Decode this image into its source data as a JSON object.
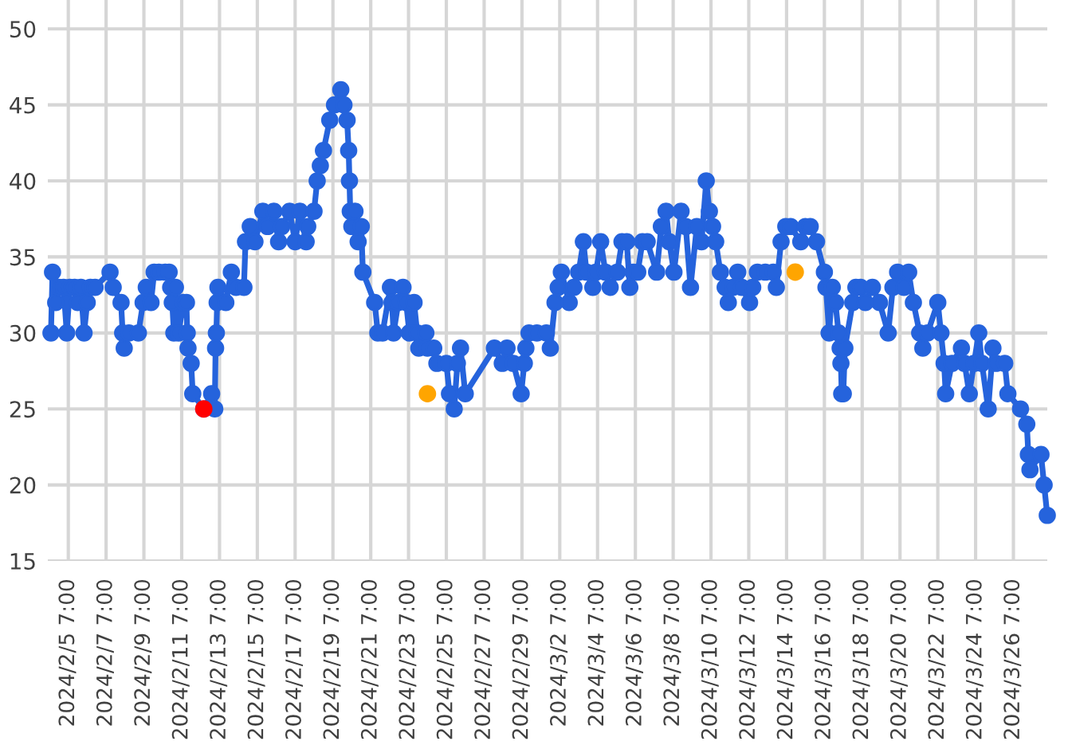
{
  "chart_data": {
    "type": "line",
    "marker": "circle",
    "grid": true,
    "xlim": [
      "2024-02-04T05:00",
      "2024-03-28T02:00"
    ],
    "xticks": [
      {
        "value": "2024-02-05T07:00",
        "label": "2024/2/5 7:00"
      },
      {
        "value": "2024-02-07T07:00",
        "label": "2024/2/7 7:00"
      },
      {
        "value": "2024-02-09T07:00",
        "label": "2024/2/9 7:00"
      },
      {
        "value": "2024-02-11T07:00",
        "label": "2024/2/11 7:00"
      },
      {
        "value": "2024-02-13T07:00",
        "label": "2024/2/13 7:00"
      },
      {
        "value": "2024-02-15T07:00",
        "label": "2024/2/15 7:00"
      },
      {
        "value": "2024-02-17T07:00",
        "label": "2024/2/17 7:00"
      },
      {
        "value": "2024-02-19T07:00",
        "label": "2024/2/19 7:00"
      },
      {
        "value": "2024-02-21T07:00",
        "label": "2024/2/21 7:00"
      },
      {
        "value": "2024-02-23T07:00",
        "label": "2024/2/23 7:00"
      },
      {
        "value": "2024-02-25T07:00",
        "label": "2024/2/25 7:00"
      },
      {
        "value": "2024-02-27T07:00",
        "label": "2024/2/27 7:00"
      },
      {
        "value": "2024-02-29T07:00",
        "label": "2024/2/29 7:00"
      },
      {
        "value": "2024-03-02T07:00",
        "label": "2024/3/2 7:00"
      },
      {
        "value": "2024-03-04T07:00",
        "label": "2024/3/4 7:00"
      },
      {
        "value": "2024-03-06T07:00",
        "label": "2024/3/6 7:00"
      },
      {
        "value": "2024-03-08T07:00",
        "label": "2024/3/8 7:00"
      },
      {
        "value": "2024-03-10T07:00",
        "label": "2024/3/10 7:00"
      },
      {
        "value": "2024-03-12T07:00",
        "label": "2024/3/12 7:00"
      },
      {
        "value": "2024-03-14T07:00",
        "label": "2024/3/14 7:00"
      },
      {
        "value": "2024-03-16T07:00",
        "label": "2024/3/16 7:00"
      },
      {
        "value": "2024-03-18T07:00",
        "label": "2024/3/18 7:00"
      },
      {
        "value": "2024-03-20T07:00",
        "label": "2024/3/20 7:00"
      },
      {
        "value": "2024-03-22T07:00",
        "label": "2024/3/22 7:00"
      },
      {
        "value": "2024-03-24T07:00",
        "label": "2024/3/24 7:00"
      },
      {
        "value": "2024-03-26T07:00",
        "label": "2024/3/26 7:00"
      }
    ],
    "ylim": [
      15,
      51.9
    ],
    "yticks": [
      15,
      20,
      25,
      30,
      35,
      40,
      45,
      50
    ],
    "series": [
      {
        "color": "#2563dc",
        "x": [
          "2024-02-04T09:00",
          "2024-02-04T11:00",
          "2024-02-04T15:00",
          "2024-02-04T19:00",
          "2024-02-05T01:00",
          "2024-02-05T05:00",
          "2024-02-05T09:00",
          "2024-02-05T15:00",
          "2024-02-05T19:00",
          "2024-02-05T23:00",
          "2024-02-06T03:00",
          "2024-02-06T07:00",
          "2024-02-06T11:00",
          "2024-02-06T17:00",
          "2024-02-07T12:00",
          "2024-02-07T16:00",
          "2024-02-08T02:00",
          "2024-02-08T04:00",
          "2024-02-08T06:00",
          "2024-02-08T12:00",
          "2024-02-09T00:00",
          "2024-02-09T06:00",
          "2024-02-09T10:00",
          "2024-02-09T16:00",
          "2024-02-09T20:00",
          "2024-02-10T02:00",
          "2024-02-10T10:00",
          "2024-02-10T15:00",
          "2024-02-10T17:00",
          "2024-02-10T19:00",
          "2024-02-10T21:00",
          "2024-02-10T23:00",
          "2024-02-11T03:00",
          "2024-02-11T09:00",
          "2024-02-11T13:00",
          "2024-02-11T14:00",
          "2024-02-11T15:00",
          "2024-02-11T19:00",
          "2024-02-11T21:00",
          "2024-02-12T11:00",
          "2024-02-12T21:00",
          "2024-02-13T01:00",
          "2024-02-13T02:00",
          "2024-02-13T03:00",
          "2024-02-13T04:00",
          "2024-02-13T05:00",
          "2024-02-13T15:00",
          "2024-02-13T22:00",
          "2024-02-14T04:00",
          "2024-02-14T14:00",
          "2024-02-14T16:00",
          "2024-02-14T22:00",
          "2024-02-15T04:00",
          "2024-02-15T14:00",
          "2024-02-15T20:00",
          "2024-02-16T04:00",
          "2024-02-16T10:00",
          "2024-02-16T14:00",
          "2024-02-17T00:00",
          "2024-02-17T07:00",
          "2024-02-17T13:00",
          "2024-02-17T21:00",
          "2024-02-17T23:00",
          "2024-02-18T07:00",
          "2024-02-18T11:00",
          "2024-02-18T15:00",
          "2024-02-18T19:00",
          "2024-02-19T03:00",
          "2024-02-19T09:00",
          "2024-02-19T17:00",
          "2024-02-19T21:00",
          "2024-02-20T01:00",
          "2024-02-20T03:00",
          "2024-02-20T04:00",
          "2024-02-20T05:00",
          "2024-02-20T07:00",
          "2024-02-20T11:00",
          "2024-02-20T15:00",
          "2024-02-20T19:00",
          "2024-02-20T21:00",
          "2024-02-21T12:00",
          "2024-02-21T16:00",
          "2024-02-21T22:00",
          "2024-02-22T08:00",
          "2024-02-22T10:00",
          "2024-02-22T12:00",
          "2024-02-22T18:00",
          "2024-02-23T00:00",
          "2024-02-23T04:00",
          "2024-02-23T08:00",
          "2024-02-23T14:00",
          "2024-02-23T18:00",
          "2024-02-23T20:00",
          "2024-02-24T05:00",
          "2024-02-24T07:00",
          "2024-02-24T15:00",
          "2024-02-24T19:00",
          "2024-02-25T07:00",
          "2024-02-25T11:00",
          "2024-02-25T17:00",
          "2024-02-25T21:00",
          "2024-02-26T01:00",
          "2024-02-26T07:00",
          "2024-02-27T20:00",
          "2024-02-28T06:00",
          "2024-02-28T12:00",
          "2024-02-28T20:00",
          "2024-02-29T06:00",
          "2024-02-29T10:00",
          "2024-02-29T12:00",
          "2024-02-29T16:00",
          "2024-03-01T02:00",
          "2024-03-01T14:00",
          "2024-03-01T19:00",
          "2024-03-02T01:00",
          "2024-03-02T05:00",
          "2024-03-02T09:00",
          "2024-03-02T19:00",
          "2024-03-03T01:00",
          "2024-03-03T07:00",
          "2024-03-03T13:00",
          "2024-03-03T17:00",
          "2024-03-04T01:00",
          "2024-03-04T05:00",
          "2024-03-04T11:00",
          "2024-03-04T17:00",
          "2024-03-04T23:00",
          "2024-03-05T08:00",
          "2024-03-05T14:00",
          "2024-03-05T20:00",
          "2024-03-06T00:00",
          "2024-03-06T04:00",
          "2024-03-06T10:00",
          "2024-03-06T16:00",
          "2024-03-06T22:00",
          "2024-03-07T10:00",
          "2024-03-07T16:00",
          "2024-03-07T22:00",
          "2024-03-08T02:00",
          "2024-03-08T08:00",
          "2024-03-08T17:00",
          "2024-03-08T23:00",
          "2024-03-09T05:00",
          "2024-03-09T13:00",
          "2024-03-09T19:00",
          "2024-03-10T01:00",
          "2024-03-10T05:00",
          "2024-03-10T09:00",
          "2024-03-10T13:00",
          "2024-03-10T19:00",
          "2024-03-11T01:00",
          "2024-03-11T05:00",
          "2024-03-11T11:00",
          "2024-03-11T17:00",
          "2024-03-11T22:00",
          "2024-03-12T08:00",
          "2024-03-12T12:00",
          "2024-03-12T18:00",
          "2024-03-13T04:00",
          "2024-03-13T14:00",
          "2024-03-13T18:00",
          "2024-03-14T00:00",
          "2024-03-14T06:00",
          "2024-03-14T12:00",
          "2024-03-15T01:00",
          "2024-03-15T07:00",
          "2024-03-15T13:00",
          "2024-03-15T21:00",
          "2024-03-16T07:00",
          "2024-03-16T09:00",
          "2024-03-16T13:00",
          "2024-03-16T17:00",
          "2024-03-16T21:00",
          "2024-03-17T01:00",
          "2024-03-17T03:00",
          "2024-03-17T04:00",
          "2024-03-17T05:00",
          "2024-03-17T07:00",
          "2024-03-17T09:00",
          "2024-03-17T19:00",
          "2024-03-17T23:00",
          "2024-03-18T05:00",
          "2024-03-18T11:00",
          "2024-03-18T20:00",
          "2024-03-19T05:00",
          "2024-03-19T16:00",
          "2024-03-19T22:00",
          "2024-03-20T04:00",
          "2024-03-20T12:00",
          "2024-03-20T18:00",
          "2024-03-21T00:00",
          "2024-03-21T08:00",
          "2024-03-21T12:00",
          "2024-03-21T18:00",
          "2024-03-22T07:00",
          "2024-03-22T11:00",
          "2024-03-22T15:00",
          "2024-03-22T17:00",
          "2024-03-23T01:00",
          "2024-03-23T13:00",
          "2024-03-23T17:00",
          "2024-03-23T23:00",
          "2024-03-24T05:00",
          "2024-03-24T11:00",
          "2024-03-24T15:00",
          "2024-03-24T23:00",
          "2024-03-25T05:00",
          "2024-03-25T09:00",
          "2024-03-25T20:00",
          "2024-03-26T00:00",
          "2024-03-26T16:00",
          "2024-03-27T00:00",
          "2024-03-27T02:00",
          "2024-03-27T04:00",
          "2024-03-27T18:00",
          "2024-03-27T22:00",
          "2024-03-28T02:00"
        ],
        "values": [
          30,
          34,
          32,
          33,
          33,
          30,
          33,
          33,
          32,
          33,
          30,
          32,
          33,
          33,
          34,
          33,
          32,
          30,
          29,
          30,
          30,
          32,
          33,
          32,
          34,
          34,
          34,
          34,
          33,
          32,
          30,
          33,
          30,
          32,
          32,
          30,
          29,
          28,
          26,
          25,
          26,
          25,
          29,
          30,
          32,
          33,
          32,
          34,
          33,
          33,
          36,
          37,
          36,
          38,
          37,
          38,
          36,
          37,
          38,
          36,
          38,
          36,
          37,
          38,
          40,
          41,
          42,
          44,
          45,
          46,
          45,
          44,
          42,
          40,
          38,
          37,
          38,
          36,
          37,
          34,
          32,
          30,
          30,
          33,
          32,
          30,
          32,
          33,
          32,
          30,
          32,
          30,
          29,
          30,
          29,
          29,
          28,
          28,
          26,
          25,
          28,
          29,
          26,
          29,
          28,
          29,
          28,
          26,
          28,
          29,
          30,
          30,
          30,
          29,
          32,
          33,
          34,
          32,
          33,
          34,
          36,
          34,
          33,
          34,
          36,
          34,
          33,
          34,
          36,
          36,
          33,
          34,
          34,
          36,
          36,
          34,
          37,
          38,
          36,
          34,
          38,
          37,
          33,
          37,
          36,
          40,
          38,
          37,
          36,
          34,
          33,
          32,
          33,
          34,
          33,
          32,
          33,
          34,
          34,
          34,
          33,
          36,
          37,
          37,
          36,
          37,
          37,
          36,
          34,
          33,
          30,
          33,
          32,
          30,
          29,
          28,
          26,
          26,
          29,
          32,
          33,
          33,
          32,
          33,
          32,
          30,
          33,
          34,
          33,
          34,
          32,
          30,
          29,
          30,
          32,
          30,
          28,
          26,
          28,
          29,
          28,
          26,
          28,
          30,
          28,
          25,
          29,
          28,
          28,
          26,
          25,
          24,
          22,
          21,
          22,
          20,
          18
        ]
      },
      {
        "type": "scatter",
        "color": "#ff0000",
        "x": [
          "2024-02-12T11:00"
        ],
        "values": [
          25
        ]
      },
      {
        "type": "scatter",
        "color": "#ffa500",
        "x": [
          "2024-02-24T07:00",
          "2024-03-14T18:00"
        ],
        "values": [
          26,
          34
        ]
      }
    ]
  }
}
